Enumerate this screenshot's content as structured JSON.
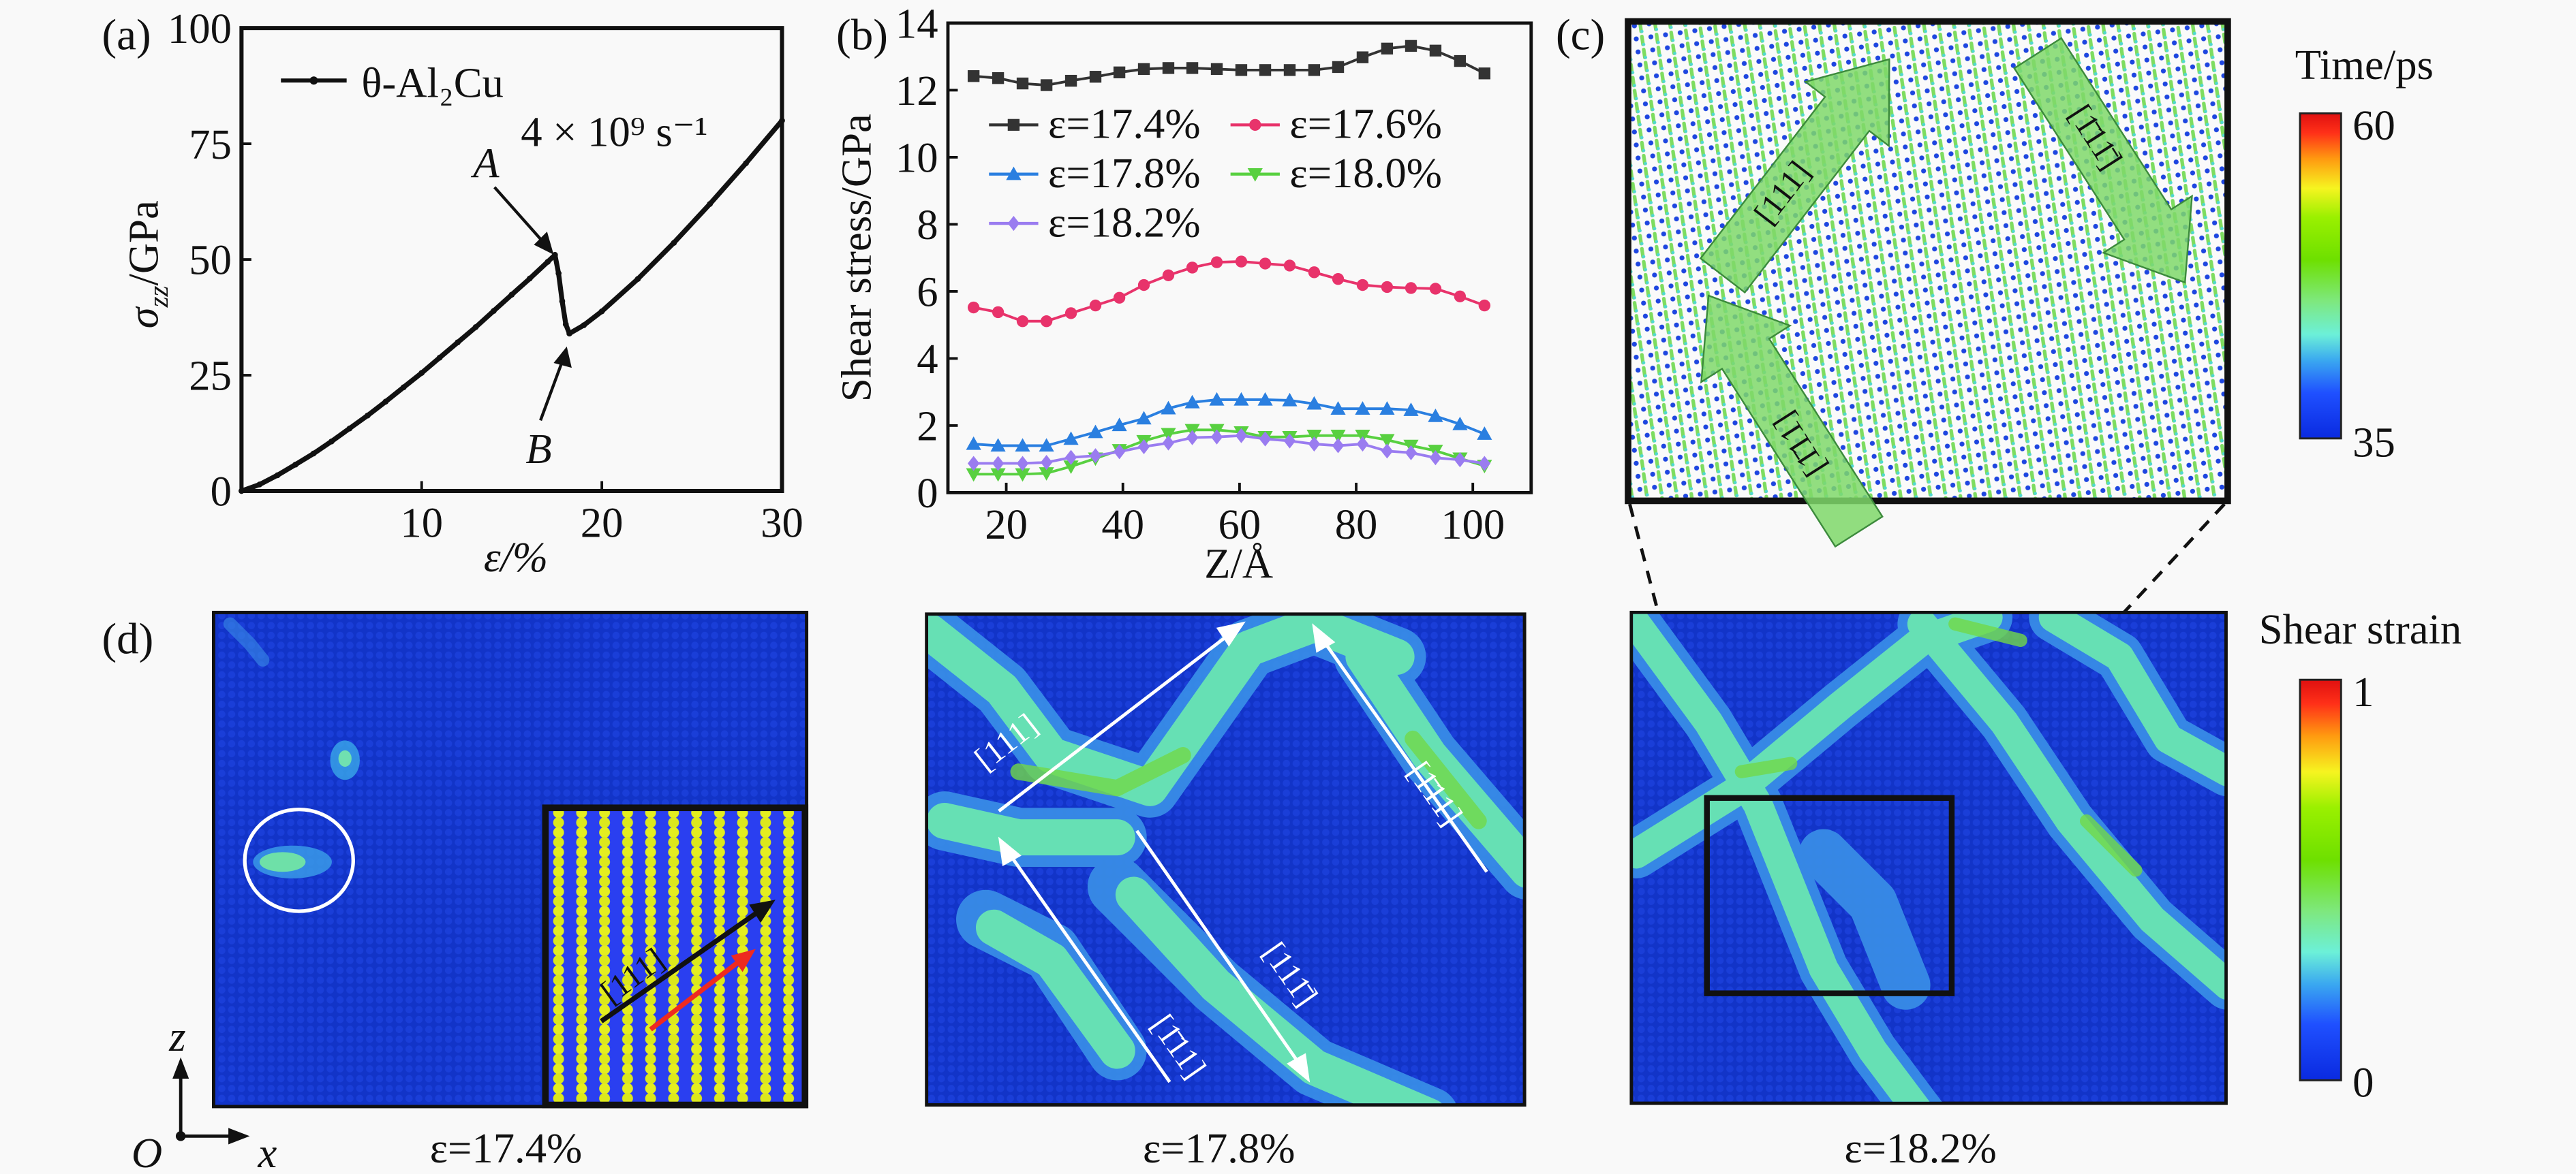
{
  "panel_labels": {
    "a": "(a)",
    "b": "(b)",
    "c": "(c)",
    "d": "(d)"
  },
  "chart_data": [
    {
      "type": "line",
      "xlabel": "ε/%",
      "ylabel": {
        "symbol": "σ",
        "sub": "zz",
        "unit": "/GPa"
      },
      "xlim": [
        0,
        30
      ],
      "ylim": [
        0,
        100
      ],
      "xticks": [
        "10",
        "20",
        "30"
      ],
      "xtick_values": [
        10,
        20,
        30
      ],
      "yticks": [
        "0",
        "25",
        "50",
        "75",
        "100"
      ],
      "ytick_values": [
        0,
        25,
        50,
        75,
        100
      ],
      "grid": false,
      "legend_position": "top-left",
      "series": [
        {
          "name": "θ-Al₂Cu",
          "color": "#111111",
          "x": [
            0,
            1,
            2,
            3,
            4,
            5,
            6,
            7,
            8,
            9,
            10,
            11,
            12,
            13,
            14,
            15,
            16,
            17,
            17.4,
            17.6,
            17.8,
            18.0,
            18.2,
            19,
            20,
            22,
            24,
            26,
            28,
            30
          ],
          "y": [
            0,
            1.4,
            3.4,
            5.7,
            8.1,
            10.7,
            13.5,
            16.3,
            19.3,
            22.4,
            25.5,
            28.8,
            32.1,
            35.4,
            38.9,
            42.4,
            45.9,
            49.5,
            51,
            47,
            41,
            36,
            34,
            35.8,
            38.8,
            45.8,
            53.6,
            62.0,
            70.8,
            80
          ]
        }
      ],
      "annotations": [
        {
          "text": "4 × 10⁹ s⁻¹"
        },
        {
          "text": "A",
          "x": 17.4,
          "y": 51
        },
        {
          "text": "B",
          "x": 18.2,
          "y": 34
        }
      ]
    },
    {
      "type": "line",
      "xlabel": "Z/Å",
      "ylabel": "Shear stress/GPa",
      "xlim": [
        10,
        110
      ],
      "ylim": [
        0,
        14
      ],
      "xticks": [
        "20",
        "40",
        "60",
        "80",
        "100"
      ],
      "xtick_values": [
        20,
        40,
        60,
        80,
        100
      ],
      "yticks": [
        "0",
        "2",
        "4",
        "6",
        "8",
        "10",
        "12",
        "14"
      ],
      "ytick_values": [
        0,
        2,
        4,
        6,
        8,
        10,
        12,
        14
      ],
      "grid": false,
      "legend_position": "top",
      "x": [
        14.4,
        18.6,
        22.8,
        26.9,
        31.1,
        35.3,
        39.4,
        43.6,
        47.8,
        51.9,
        56.1,
        60.3,
        64.4,
        68.6,
        72.8,
        76.9,
        81.1,
        85.3,
        89.4,
        93.6,
        97.8,
        102
      ],
      "series": [
        {
          "name": "ε=17.4%",
          "color": "#333333",
          "marker": "square",
          "values": [
            12.42,
            12.36,
            12.2,
            12.15,
            12.28,
            12.4,
            12.53,
            12.63,
            12.66,
            12.66,
            12.63,
            12.6,
            12.6,
            12.6,
            12.6,
            12.69,
            12.98,
            13.24,
            13.32,
            13.18,
            12.87,
            12.5
          ]
        },
        {
          "name": "ε=17.6%",
          "color": "#e8336b",
          "marker": "circle",
          "values": [
            5.52,
            5.38,
            5.11,
            5.11,
            5.35,
            5.58,
            5.81,
            6.19,
            6.48,
            6.71,
            6.87,
            6.89,
            6.83,
            6.77,
            6.57,
            6.37,
            6.19,
            6.13,
            6.1,
            6.08,
            5.85,
            5.58
          ]
        },
        {
          "name": "ε=17.8%",
          "color": "#2a7fe0",
          "marker": "triangle-up",
          "values": [
            1.45,
            1.4,
            1.4,
            1.4,
            1.6,
            1.8,
            2.01,
            2.21,
            2.51,
            2.69,
            2.77,
            2.77,
            2.77,
            2.75,
            2.65,
            2.5,
            2.5,
            2.5,
            2.46,
            2.28,
            2.04,
            1.75
          ]
        },
        {
          "name": "ε=18.0%",
          "color": "#58d040",
          "marker": "triangle-down",
          "values": [
            0.55,
            0.55,
            0.55,
            0.58,
            0.78,
            1.02,
            1.27,
            1.54,
            1.75,
            1.87,
            1.87,
            1.8,
            1.66,
            1.66,
            1.7,
            1.7,
            1.7,
            1.57,
            1.4,
            1.25,
            1.02,
            0.8
          ]
        },
        {
          "name": "ε=18.2%",
          "color": "#9a7cf0",
          "marker": "diamond",
          "values": [
            0.87,
            0.87,
            0.87,
            0.9,
            1.05,
            1.1,
            1.22,
            1.37,
            1.48,
            1.64,
            1.66,
            1.7,
            1.6,
            1.54,
            1.45,
            1.4,
            1.45,
            1.24,
            1.19,
            1.04,
            0.98,
            0.87
          ]
        }
      ]
    }
  ],
  "panel_c": {
    "colorbar": {
      "title": "Time/ps",
      "max": "60",
      "min": "35",
      "colormap": "jet"
    },
    "arrow_labels": [
      "[111]",
      "[1̄11̄]",
      "[1̄11]"
    ],
    "arrow_color": "#7fd86a"
  },
  "panel_d": {
    "captions": [
      "ε=17.4%",
      "ε=17.8%",
      "ε=18.2%"
    ],
    "axes": {
      "origin": "O",
      "x": "x",
      "z": "z"
    },
    "inset_label": "[111]",
    "panel2_labels": [
      "[111]",
      "[1̄11]",
      "[1̄11]",
      "[111̄]"
    ],
    "colorbar": {
      "title": "Shear strain",
      "max": "1",
      "min": "0",
      "colormap": "jet"
    },
    "colors": {
      "matrix": "#1234c8",
      "defect": "#6fe0a8",
      "inset_yellow": "#e4ee20",
      "inset_blue": "#2a3ff0",
      "arrow_red": "#ee2a20"
    }
  }
}
